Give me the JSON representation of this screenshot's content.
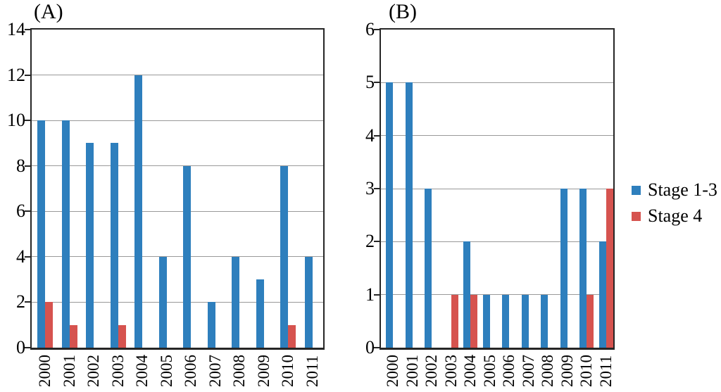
{
  "chart_data": [
    {
      "type": "bar",
      "title": "(A)",
      "categories": [
        "2000",
        "2001",
        "2002",
        "2003",
        "2004",
        "2005",
        "2006",
        "2007",
        "2008",
        "2009",
        "2010",
        "2011"
      ],
      "series": [
        {
          "name": "Stage 1-3",
          "color": "#2E7FBD",
          "values": [
            10,
            10,
            9,
            9,
            12,
            4,
            8,
            2,
            4,
            3,
            8,
            4
          ]
        },
        {
          "name": "Stage 4",
          "color": "#D6534F",
          "values": [
            2,
            1,
            0,
            1,
            0,
            0,
            0,
            0,
            0,
            0,
            1,
            0
          ]
        }
      ],
      "xlabel": "",
      "ylabel": "",
      "ylim": [
        0,
        14
      ],
      "y_tick_step": 2,
      "grid": true,
      "legend_position": "right-of-figure"
    },
    {
      "type": "bar",
      "title": "(B)",
      "categories": [
        "2000",
        "2001",
        "2002",
        "2003",
        "2004",
        "2005",
        "2006",
        "2007",
        "2008",
        "2009",
        "2010",
        "2011"
      ],
      "series": [
        {
          "name": "Stage 1-3",
          "color": "#2E7FBD",
          "values": [
            5,
            5,
            3,
            0,
            2,
            1,
            1,
            1,
            1,
            3,
            3,
            2
          ]
        },
        {
          "name": "Stage 4",
          "color": "#D6534F",
          "values": [
            0,
            0,
            0,
            1,
            1,
            0,
            0,
            0,
            0,
            0,
            1,
            3
          ]
        }
      ],
      "xlabel": "",
      "ylabel": "",
      "ylim": [
        0,
        6
      ],
      "y_tick_step": 1,
      "grid": true,
      "legend_position": "right-of-figure"
    }
  ],
  "legend": {
    "items": [
      {
        "label": "Stage 1-3",
        "color": "#2E7FBD",
        "swatch": "blue-square"
      },
      {
        "label": "Stage 4",
        "color": "#D6534F",
        "swatch": "red-square"
      }
    ]
  },
  "colors": {
    "grid": "#999999",
    "axis": "#262626",
    "background": "#FFFFFF",
    "text": "#000000"
  }
}
